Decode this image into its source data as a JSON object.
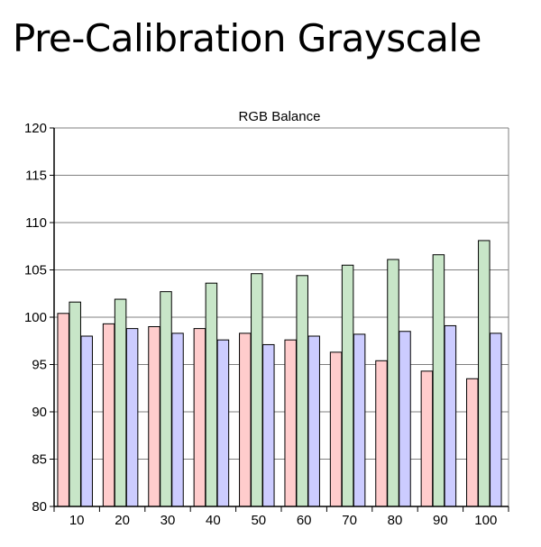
{
  "page": {
    "title": "Pre-Calibration Grayscale"
  },
  "chart_data": {
    "type": "bar",
    "title": "RGB Balance",
    "xlabel": "",
    "ylabel": "",
    "categories": [
      "10",
      "20",
      "30",
      "40",
      "50",
      "60",
      "70",
      "80",
      "90",
      "100"
    ],
    "series": [
      {
        "color": "#ffcccc",
        "values": [
          100.4,
          99.3,
          99.0,
          98.8,
          98.3,
          97.6,
          96.3,
          95.4,
          94.3,
          93.5
        ]
      },
      {
        "color": "#c8e6c8",
        "values": [
          101.6,
          101.9,
          102.7,
          103.6,
          104.6,
          104.4,
          105.5,
          106.1,
          106.6,
          108.1
        ]
      },
      {
        "color": "#ccccff",
        "values": [
          98.0,
          98.8,
          98.3,
          97.6,
          97.1,
          98.0,
          98.2,
          98.5,
          99.1,
          98.3
        ]
      }
    ],
    "ylim": [
      80,
      120
    ],
    "yticks": [
      80,
      85,
      90,
      95,
      100,
      105,
      110,
      115,
      120
    ],
    "grid": true,
    "legend": "none"
  }
}
